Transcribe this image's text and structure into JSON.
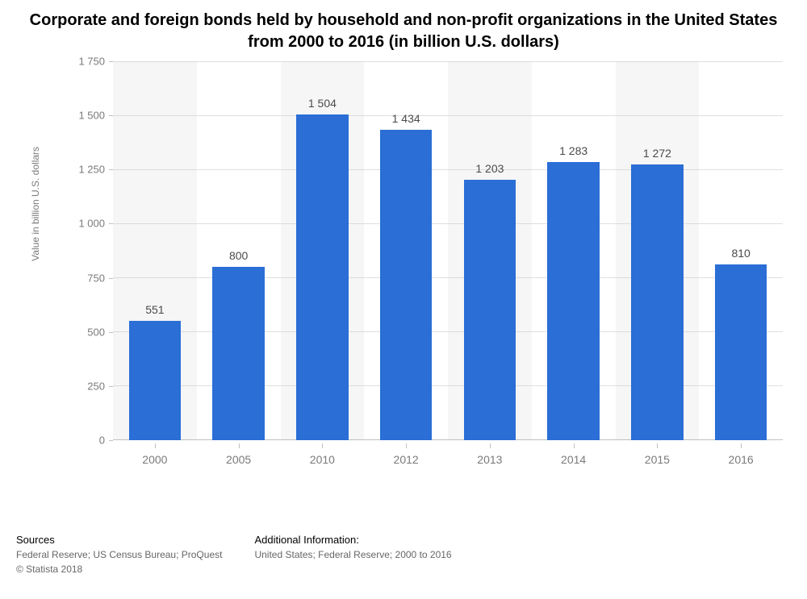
{
  "title": "Corporate and foreign bonds held by household and non-profit organizations in the United States from 2000 to 2016 (in billion U.S. dollars)",
  "title_fontsize": 20,
  "title_color": "#000000",
  "chart": {
    "type": "bar",
    "categories": [
      "2000",
      "2005",
      "2010",
      "2012",
      "2013",
      "2014",
      "2015",
      "2016"
    ],
    "values": [
      551,
      800,
      1504,
      1434,
      1203,
      1283,
      1272,
      810
    ],
    "value_labels": [
      "551",
      "800",
      "1 504",
      "1 434",
      "1 203",
      "1 283",
      "1 272",
      "810"
    ],
    "bar_color": "#2a6ed6",
    "ylim": [
      0,
      1750
    ],
    "ytick_step": 250,
    "ytick_labels": [
      "0",
      "250",
      "500",
      "750",
      "1 000",
      "1 250",
      "1 500",
      "1 750"
    ],
    "ylabel": "Value in billion U.S. dollars",
    "ylabel_fontsize": 12,
    "tick_fontsize": 13,
    "value_label_fontsize": 14,
    "value_label_color": "#4a4a4a",
    "tick_color": "#7a7a7a",
    "grid_color": "#c0c0c0",
    "stripe_colors": [
      "#f6f6f6",
      "#ffffff"
    ],
    "background_color": "#ffffff",
    "bar_width_ratio": 0.62
  },
  "footer": {
    "sources_heading": "Sources",
    "sources_line1": "Federal Reserve; US Census Bureau; ProQuest",
    "sources_line2": "© Statista 2018",
    "addl_heading": "Additional Information:",
    "addl_line1": "United States; Federal Reserve; 2000 to 2016",
    "heading_color": "#000000",
    "text_color": "#666666",
    "fontsize": 12
  }
}
